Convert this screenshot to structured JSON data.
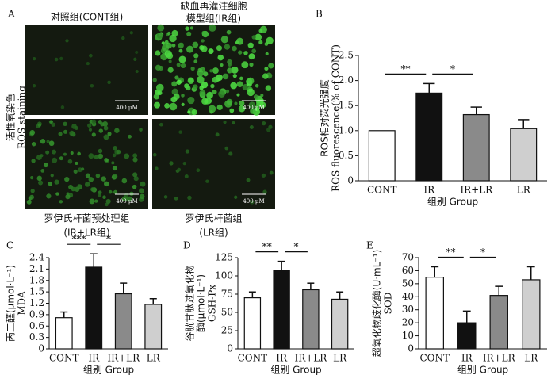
{
  "panel_a": {
    "letter": "A",
    "row_label": [
      "活性氧染色",
      "ROS staining"
    ],
    "images": [
      {
        "title": [
          "对照组(CONT组)"
        ],
        "scale": "400 μM"
      },
      {
        "title": [
          "缺血再灌注细胞",
          "模型组(IR组)"
        ],
        "scale": "400 μM"
      },
      {
        "title": [
          "罗伊氏杆菌预处理组",
          "(IR+LR组)"
        ],
        "scale": "400 μM"
      },
      {
        "title": [
          "罗伊氏杆菌组",
          "(LR组)"
        ],
        "scale": "400 μM"
      }
    ]
  },
  "chart_data": [
    {
      "type": "bar",
      "letter": "B",
      "ylabel": [
        "ROS相对荧光强度",
        "ROS fluorescence(% of CONT)"
      ],
      "xlabel": "组别 Group",
      "categories": [
        "CONT",
        "IR",
        "IR+LR",
        "LR"
      ],
      "values": [
        1.0,
        1.75,
        1.32,
        1.04
      ],
      "errors": [
        0,
        0.19,
        0.15,
        0.18
      ],
      "colors": [
        "#ffffff",
        "#111111",
        "#8a8a8a",
        "#cfcfcf"
      ],
      "ylim": [
        0,
        2.5
      ],
      "yticks": [
        0,
        0.5,
        {
          "value": 1,
          "label": "1.0"
        },
        1.5,
        {
          "value": 2,
          "label": "2.0"
        },
        2.5
      ],
      "significance": [
        "**",
        "*"
      ]
    },
    {
      "type": "bar",
      "letter": "C",
      "ylabel": [
        "丙二醛(μmol·L⁻¹)",
        "MDA"
      ],
      "xlabel": "组别 Group",
      "categories": [
        "CONT",
        "IR",
        "IR+LR",
        "LR"
      ],
      "values": [
        0.82,
        2.15,
        1.45,
        1.17
      ],
      "errors": [
        0.15,
        0.35,
        0.28,
        0.15
      ],
      "colors": [
        "#ffffff",
        "#111111",
        "#8a8a8a",
        "#cfcfcf"
      ],
      "ylim": [
        0,
        2.4
      ],
      "yticks": [
        0,
        0.3,
        0.6,
        0.9,
        1.2,
        1.5,
        1.8,
        2.1,
        2.4
      ],
      "significance": [
        "***",
        "*"
      ]
    },
    {
      "type": "bar",
      "letter": "D",
      "ylabel": [
        "谷胱甘肽过氧化物",
        "酶(μmol·L⁻¹)",
        "GSH-Px"
      ],
      "xlabel": "组别 Group",
      "categories": [
        "CONT",
        "IR",
        "IR+LR",
        "LR"
      ],
      "values": [
        70,
        108,
        81,
        68
      ],
      "errors": [
        8,
        12,
        9,
        10
      ],
      "colors": [
        "#ffffff",
        "#111111",
        "#8a8a8a",
        "#cfcfcf"
      ],
      "ylim": [
        0,
        125
      ],
      "yticks": [
        0,
        25,
        50,
        75,
        100,
        125
      ],
      "significance": [
        "**",
        "*"
      ]
    },
    {
      "type": "bar",
      "letter": "E",
      "ylabel": [
        "超氧化物歧化酶(U·mL⁻¹)",
        "SOD"
      ],
      "xlabel": "组别 Group",
      "categories": [
        "CONT",
        "IR",
        "IR+LR",
        "LR"
      ],
      "values": [
        55,
        20,
        41,
        53
      ],
      "errors": [
        8,
        9,
        7,
        10
      ],
      "colors": [
        "#ffffff",
        "#111111",
        "#8a8a8a",
        "#cfcfcf"
      ],
      "ylim": [
        0,
        70
      ],
      "yticks": [
        0,
        10,
        20,
        30,
        40,
        50,
        60,
        70
      ],
      "significance": [
        "**",
        "*"
      ]
    }
  ]
}
